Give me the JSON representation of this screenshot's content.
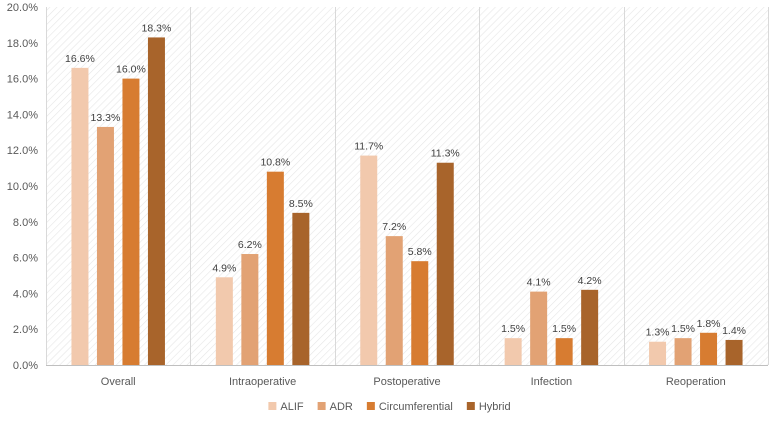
{
  "chart_data": {
    "type": "bar",
    "title": "",
    "xlabel": "",
    "ylabel": "",
    "ylim": [
      0,
      20
    ],
    "yticks": [
      0,
      2,
      4,
      6,
      8,
      10,
      12,
      14,
      16,
      18,
      20
    ],
    "ytick_labels": [
      "0.0%",
      "2.0%",
      "4.0%",
      "6.0%",
      "8.0%",
      "10.0%",
      "12.0%",
      "14.0%",
      "16.0%",
      "18.0%",
      "20.0%"
    ],
    "categories": [
      "Overall",
      "Intraoperative",
      "Postoperative",
      "Infection",
      "Reoperation"
    ],
    "series": [
      {
        "name": "ALIF",
        "color": "#f2c9ad",
        "values": [
          16.6,
          4.9,
          11.7,
          1.5,
          1.3
        ],
        "labels": [
          "16.6%",
          "4.9%",
          "11.7%",
          "1.5%",
          "1.3%"
        ]
      },
      {
        "name": "ADR",
        "color": "#e2a274",
        "values": [
          13.3,
          6.2,
          7.2,
          4.1,
          1.5
        ],
        "labels": [
          "13.3%",
          "6.2%",
          "7.2%",
          "4.1%",
          "1.5%"
        ]
      },
      {
        "name": "Circumferential",
        "color": "#d77c31",
        "values": [
          16.0,
          10.8,
          5.8,
          1.5,
          1.8
        ],
        "labels": [
          "16.0%",
          "10.8%",
          "5.8%",
          "1.5%",
          "1.8%"
        ]
      },
      {
        "name": "Hybrid",
        "color": "#a8642b",
        "values": [
          18.3,
          8.5,
          11.3,
          4.2,
          1.4
        ],
        "labels": [
          "18.3%",
          "8.5%",
          "11.3%",
          "4.2%",
          "1.4%"
        ]
      }
    ],
    "legend_position": "bottom",
    "grid": true
  }
}
